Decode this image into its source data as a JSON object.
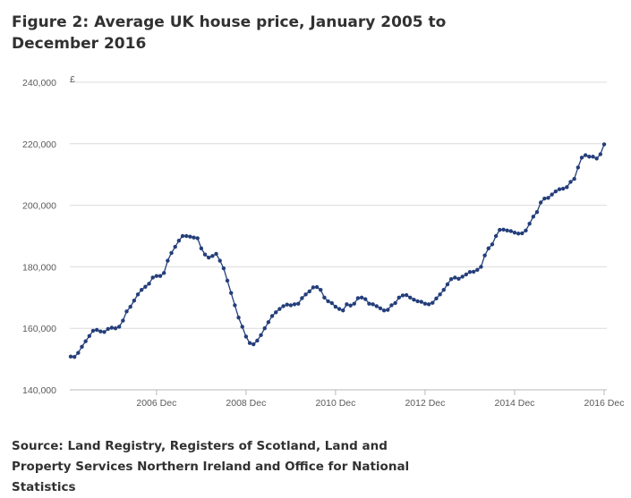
{
  "figure": {
    "title": "Figure 2: Average UK house price, January 2005 to December 2016",
    "source": "Source: Land Registry, Registers of Scotland, Land and Property Services Northern Ireland and Office for National Statistics"
  },
  "chart_data": {
    "type": "line",
    "title": "Figure 2: Average UK house price, January 2005 to December 2016",
    "xlabel": "",
    "ylabel": "£",
    "ylim": [
      140000,
      240000
    ],
    "yticks": [
      140000,
      160000,
      180000,
      200000,
      220000,
      240000
    ],
    "ytick_labels": [
      "140,000",
      "160,000",
      "180,000",
      "200,000",
      "220,000",
      "240,000"
    ],
    "xtick_labels": [
      "2006 Dec",
      "2008 Dec",
      "2010 Dec",
      "2012 Dec",
      "2014 Dec",
      "2016 Dec"
    ],
    "x_start": "2005 Jan",
    "x_end": "2016 Dec",
    "grid": "horizontal",
    "color": "#243e7a",
    "series": [
      {
        "values": [
          150800,
          150700,
          152000,
          154000,
          155800,
          157500,
          159200,
          159500,
          159000,
          158800,
          159800,
          160200,
          160000,
          160500,
          162500,
          165500,
          167000,
          169000,
          171000,
          172500,
          173500,
          174500,
          176500,
          177000,
          177000,
          178000,
          182000,
          184500,
          186500,
          188500,
          190000,
          190000,
          189800,
          189500,
          189300,
          186000,
          184000,
          183000,
          183500,
          184200,
          182000,
          179500,
          175500,
          171500,
          167500,
          163500,
          160500,
          157300,
          155200,
          154800,
          156000,
          157800,
          160000,
          162000,
          164000,
          165200,
          166300,
          167200,
          167700,
          167500,
          167800,
          168000,
          169800,
          171000,
          172000,
          173300,
          173400,
          172500,
          170000,
          168800,
          168200,
          167000,
          166300,
          165800,
          167800,
          167400,
          168000,
          169800,
          170000,
          169500,
          168000,
          167800,
          167200,
          166500,
          165800,
          166000,
          167500,
          168200,
          170000,
          170700,
          170800,
          170000,
          169300,
          168800,
          168600,
          168000,
          167800,
          168300,
          169700,
          171000,
          172500,
          174300,
          176000,
          176500,
          176100,
          176800,
          177500,
          178300,
          178400,
          179000,
          180000,
          183700,
          186000,
          187300,
          190000,
          192000,
          192100,
          191800,
          191600,
          191100,
          190800,
          190900,
          191800,
          194000,
          196300,
          197800,
          200900,
          202200,
          202400,
          203500,
          204500,
          205200,
          205400,
          205900,
          207600,
          208600,
          212300,
          215500,
          216300,
          215800,
          215800,
          215200,
          216600,
          219800
        ]
      }
    ]
  }
}
